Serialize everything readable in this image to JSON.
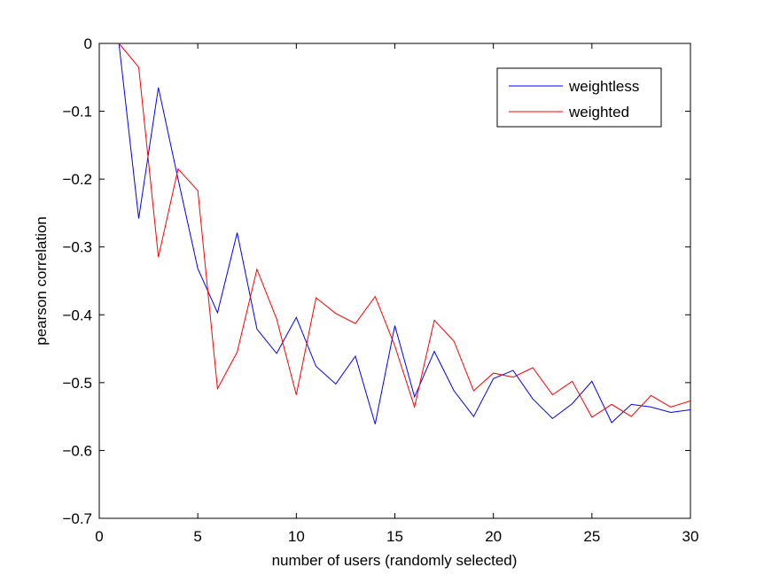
{
  "chart_data": {
    "type": "line",
    "title": "",
    "xlabel": "number of users (randomly selected)",
    "ylabel": "pearson correlation",
    "xlim": [
      0,
      30
    ],
    "ylim": [
      -0.7,
      0
    ],
    "xticks": [
      0,
      5,
      10,
      15,
      20,
      25,
      30
    ],
    "xtick_labels": [
      "0",
      "5",
      "10",
      "15",
      "20",
      "25",
      "30"
    ],
    "yticks": [
      0,
      -0.1,
      -0.2,
      -0.3,
      -0.4,
      -0.5,
      -0.6,
      -0.7
    ],
    "ytick_labels": [
      "0",
      "−0.1",
      "−0.2",
      "−0.3",
      "−0.4",
      "−0.5",
      "−0.6",
      "−0.7"
    ],
    "grid": false,
    "legend_position": "top-right",
    "x": [
      1,
      2,
      3,
      4,
      5,
      6,
      7,
      8,
      9,
      10,
      11,
      12,
      13,
      14,
      15,
      16,
      17,
      18,
      19,
      20,
      21,
      22,
      23,
      24,
      25,
      26,
      27,
      28,
      29,
      30
    ],
    "series": [
      {
        "name": "weightless",
        "color": "#0000ff",
        "values": [
          0,
          -0.258,
          -0.065,
          -0.2,
          -0.332,
          -0.397,
          -0.279,
          -0.421,
          -0.457,
          -0.404,
          -0.476,
          -0.502,
          -0.461,
          -0.561,
          -0.416,
          -0.521,
          -0.454,
          -0.512,
          -0.55,
          -0.494,
          -0.482,
          -0.524,
          -0.553,
          -0.531,
          -0.498,
          -0.559,
          -0.532,
          -0.536,
          -0.544,
          -0.54
        ]
      },
      {
        "name": "weighted",
        "color": "#ff0000",
        "values": [
          0,
          -0.035,
          -0.315,
          -0.185,
          -0.217,
          -0.509,
          -0.455,
          -0.333,
          -0.406,
          -0.518,
          -0.375,
          -0.398,
          -0.413,
          -0.373,
          -0.446,
          -0.536,
          -0.408,
          -0.439,
          -0.512,
          -0.486,
          -0.492,
          -0.478,
          -0.518,
          -0.498,
          -0.551,
          -0.532,
          -0.55,
          -0.519,
          -0.536,
          -0.527
        ]
      }
    ]
  }
}
